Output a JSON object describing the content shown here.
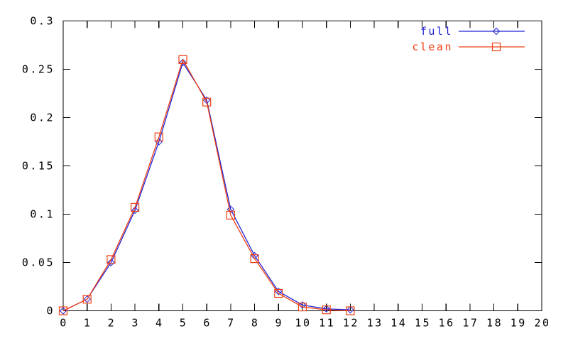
{
  "chart_data": {
    "type": "line",
    "title": "",
    "xlabel": "",
    "ylabel": "",
    "xlim": [
      0,
      20
    ],
    "ylim": [
      0,
      0.3
    ],
    "grid": false,
    "legend_position": "top-right-inside",
    "background_color": "#ffffff",
    "axis_color": "#000000",
    "x_ticks": [
      0,
      1,
      2,
      3,
      4,
      5,
      6,
      7,
      8,
      9,
      10,
      11,
      12,
      13,
      14,
      15,
      16,
      17,
      18,
      19,
      20
    ],
    "x_tick_labels": [
      "0",
      "1",
      "2",
      "3",
      "4",
      "5",
      "6",
      "7",
      "8",
      "9",
      "10",
      "11",
      "12",
      "13",
      "14",
      "15",
      "16",
      "17",
      "18",
      "19",
      "20"
    ],
    "y_ticks": [
      0,
      0.05,
      0.1,
      0.15,
      0.2,
      0.25,
      0.3
    ],
    "y_tick_labels": [
      "0",
      "0.05",
      "0.1",
      "0.15",
      "0.2",
      "0.25",
      "0.3"
    ],
    "x": [
      0,
      1,
      2,
      3,
      4,
      5,
      6,
      7,
      8,
      9,
      10,
      11,
      12
    ],
    "series": [
      {
        "name": "full",
        "color": "#2323d7",
        "marker": "diamond",
        "values": [
          0.0,
          0.012,
          0.05,
          0.104,
          0.175,
          0.257,
          0.218,
          0.105,
          0.057,
          0.02,
          0.006,
          0.002,
          0.001
        ]
      },
      {
        "name": "clean",
        "color": "#f04114",
        "marker": "square",
        "values": [
          0.0,
          0.012,
          0.053,
          0.107,
          0.18,
          0.26,
          0.216,
          0.099,
          0.054,
          0.018,
          0.004,
          0.001,
          0.0
        ]
      }
    ]
  }
}
